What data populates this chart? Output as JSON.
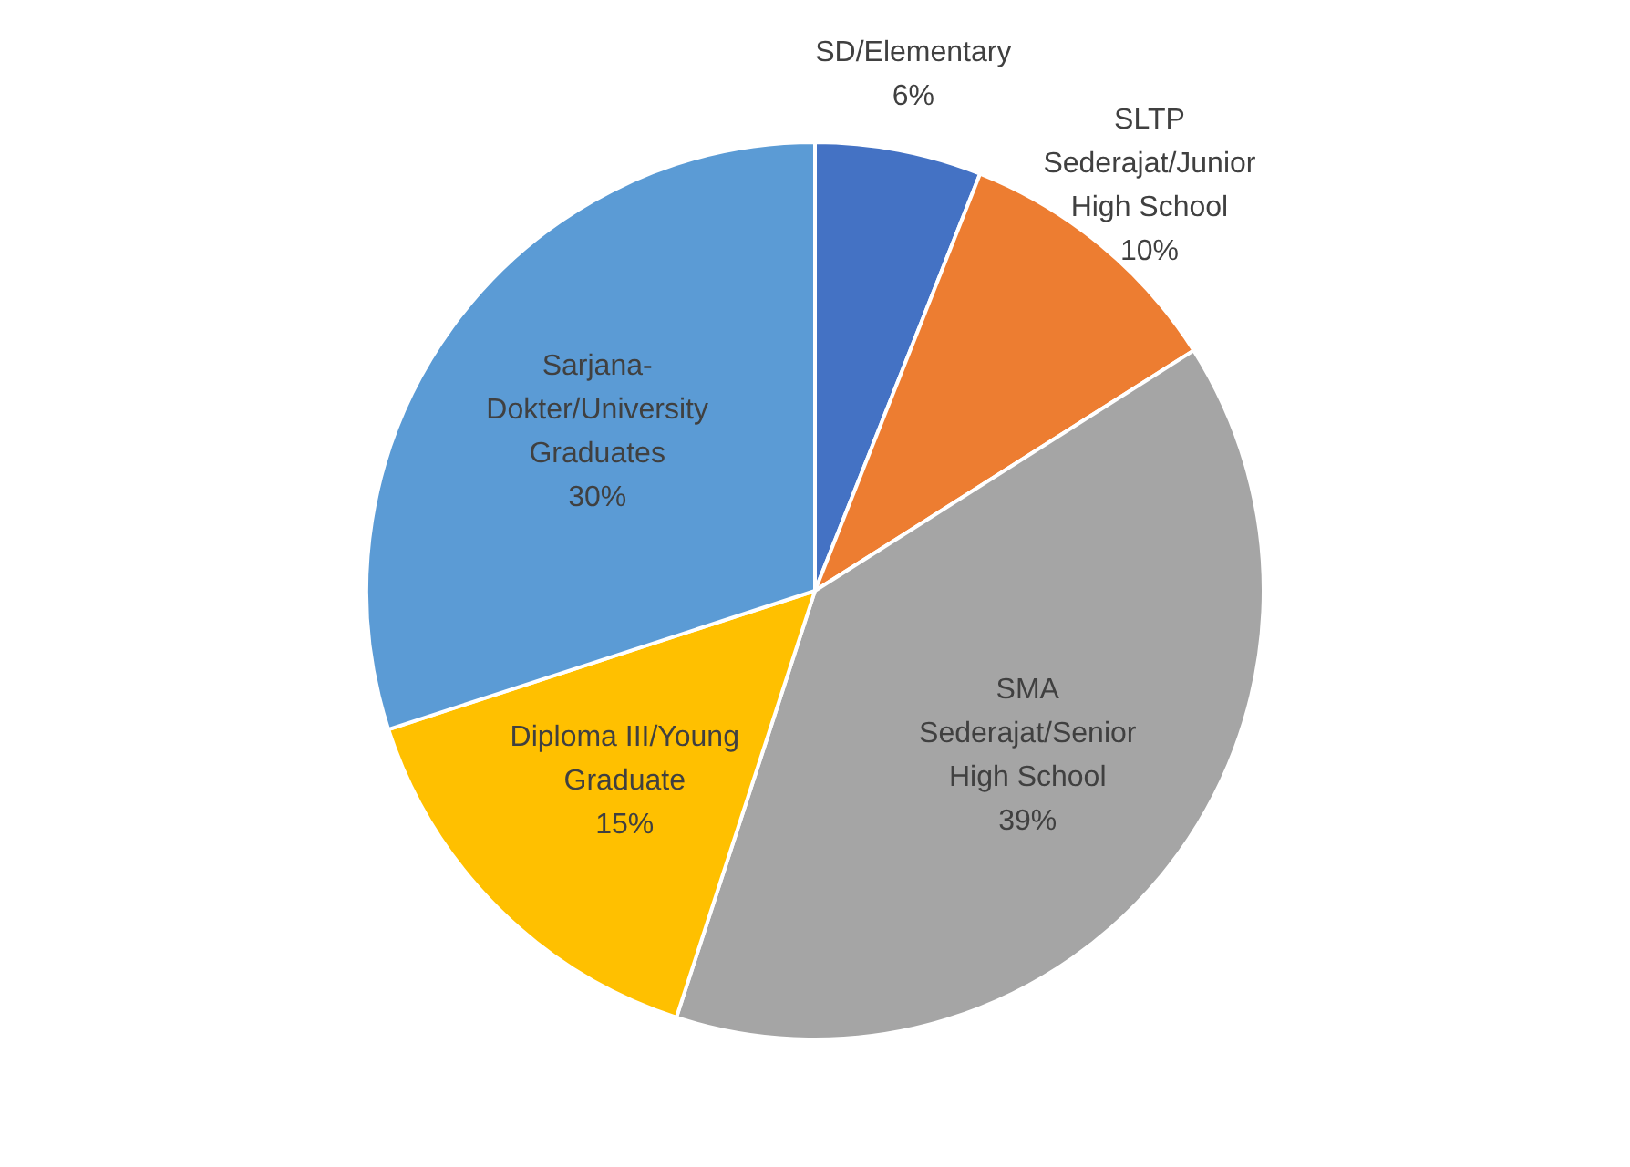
{
  "chart_data": {
    "type": "pie",
    "categories": [
      "SD/Elementary",
      "SLTP Sederajat/Junior High School",
      "SMA Sederajat/Senior High School",
      "Diploma III/Young Graduate",
      "Sarjana-Dokter/University Graduates"
    ],
    "values": [
      6,
      10,
      39,
      15,
      30
    ],
    "value_labels": [
      "6%",
      "10%",
      "39%",
      "15%",
      "30%"
    ],
    "colors": [
      "#4472c4",
      "#ed7d31",
      "#a5a5a5",
      "#ffc000",
      "#5b9bd5"
    ],
    "legend": false
  }
}
